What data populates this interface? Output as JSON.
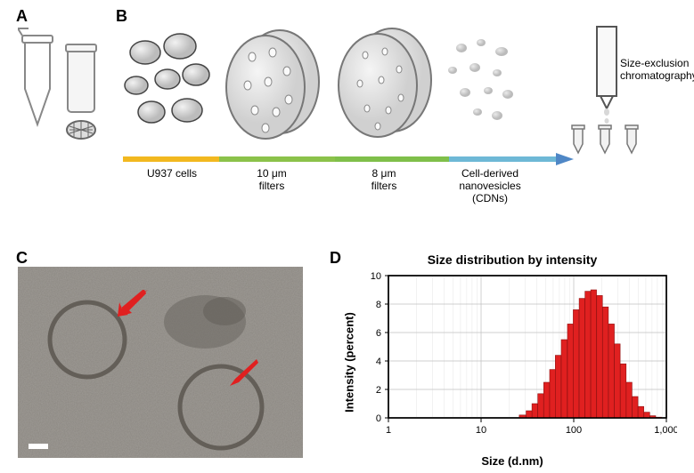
{
  "panelLabels": {
    "a": "A",
    "b": "B",
    "c": "C",
    "d": "D"
  },
  "panelB": {
    "stageLabels": {
      "cells": "U937 cells",
      "filter10_l1": "10 μm",
      "filter10_l2": "filters",
      "filter8_l1": "8 μm",
      "filter8_l2": "filters",
      "cdn_l1": "Cell-derived",
      "cdn_l2": "nanovesicles",
      "cdn_l3": "(CDNs)"
    },
    "secLabel_l1": "Size-exclusion",
    "secLabel_l2": "chromatography",
    "barColors": {
      "seg1": "#f2b81f",
      "seg2": "#8bc24a",
      "seg3": "#7fbf4a",
      "seg4": "#6eb8d6",
      "arrowHead": "#4f87c6"
    }
  },
  "chart": {
    "title": "Size distribution by intensity",
    "yLabel": "Intensity (percent)",
    "xLabel": "Size (d.nm)",
    "yMin": 0,
    "yMax": 10,
    "yTickStep": 2,
    "xTicks": [
      1,
      10,
      100,
      1000
    ],
    "xTickLabels": [
      "1",
      "10",
      "100",
      "1,000"
    ],
    "barColor": "#e02020",
    "barBorder": "#8f1010",
    "background": "#ffffff",
    "gridColor": "#bfbfbf",
    "axisColor": "#000000",
    "fontsize_title": 14,
    "fontsize_axis": 13,
    "fontsize_tick": 11,
    "bars": [
      {
        "x": 28,
        "y": 0.2
      },
      {
        "x": 33,
        "y": 0.5
      },
      {
        "x": 38,
        "y": 1.0
      },
      {
        "x": 44,
        "y": 1.7
      },
      {
        "x": 51,
        "y": 2.5
      },
      {
        "x": 59,
        "y": 3.4
      },
      {
        "x": 68,
        "y": 4.4
      },
      {
        "x": 79,
        "y": 5.5
      },
      {
        "x": 92,
        "y": 6.6
      },
      {
        "x": 106,
        "y": 7.6
      },
      {
        "x": 123,
        "y": 8.4
      },
      {
        "x": 142,
        "y": 8.9
      },
      {
        "x": 164,
        "y": 9.0
      },
      {
        "x": 190,
        "y": 8.6
      },
      {
        "x": 220,
        "y": 7.8
      },
      {
        "x": 255,
        "y": 6.6
      },
      {
        "x": 295,
        "y": 5.2
      },
      {
        "x": 342,
        "y": 3.8
      },
      {
        "x": 396,
        "y": 2.5
      },
      {
        "x": 459,
        "y": 1.5
      },
      {
        "x": 531,
        "y": 0.8
      },
      {
        "x": 615,
        "y": 0.4
      },
      {
        "x": 713,
        "y": 0.15
      },
      {
        "x": 825,
        "y": 0.05
      }
    ]
  },
  "colors": {
    "tubeOutline": "#888888",
    "tubeFill": "#f2f2f2",
    "cellFill": "#d8d8d8",
    "filterFill": "#e6e6e6",
    "filterStroke": "#777777",
    "nanoFill": "#c8c8c8",
    "arrowRed": "#e02020",
    "temBg": "#8a8680",
    "temLight": "#a09c95",
    "temDark": "#6f6b65",
    "white": "#ffffff"
  }
}
